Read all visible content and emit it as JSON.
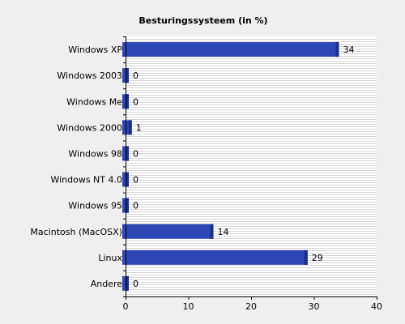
{
  "chart_data": {
    "type": "bar",
    "orientation": "horizontal",
    "title": "Besturingssysteem (in %)",
    "xlabel": "",
    "ylabel": "",
    "categories": [
      "Windows XP",
      "Windows 2003",
      "Windows Me",
      "Windows 2000",
      "Windows 98",
      "Windows NT 4.0",
      "Windows 95",
      "Macintosh (MacOSX)",
      "Linux",
      "Andere"
    ],
    "values": [
      34,
      0,
      0,
      1,
      0,
      0,
      0,
      14,
      29,
      0
    ],
    "value_labels": [
      "34",
      "0",
      "0",
      "1",
      "0",
      "0",
      "0",
      "14",
      "29",
      "0"
    ],
    "xlim": [
      0,
      40
    ],
    "xticks": [
      0,
      10,
      20,
      30,
      40
    ],
    "grid": "horizontal lines",
    "colors": {
      "background": "#efefef",
      "plot_background": "#ffffff",
      "grid": "#d4d4d4",
      "bar": "#2e47b6",
      "bar_shadow": "#1f2f7a"
    }
  }
}
